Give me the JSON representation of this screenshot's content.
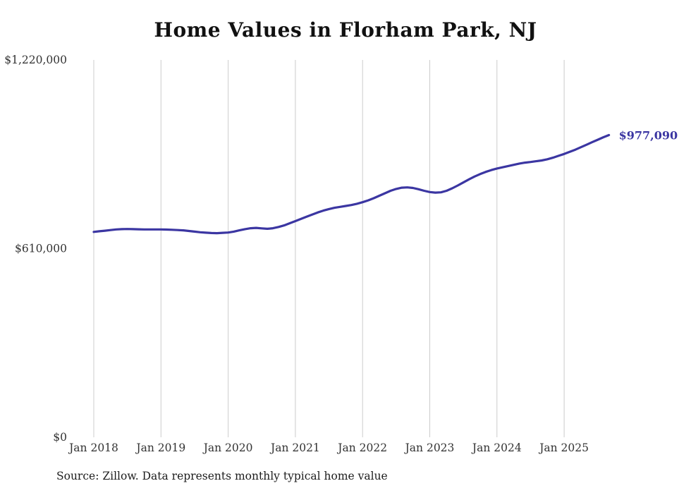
{
  "chart_data": {
    "type": "line",
    "title": "Home Values in Florham Park, NJ",
    "series_name": "Monthly typical home value",
    "start_month": "2018-01",
    "end_month": "2025-09",
    "values": [
      664000,
      666000,
      668000,
      670000,
      672000,
      673000,
      673500,
      673000,
      672500,
      672000,
      672000,
      672000,
      672000,
      671500,
      671000,
      670000,
      669000,
      667000,
      665000,
      663000,
      661500,
      660500,
      660000,
      661000,
      662000,
      665000,
      669000,
      673000,
      676000,
      677000,
      675500,
      674000,
      676000,
      680000,
      685000,
      692000,
      699000,
      706000,
      713000,
      720000,
      727000,
      733000,
      738000,
      742000,
      745000,
      748000,
      751000,
      755000,
      760000,
      766000,
      773000,
      781000,
      789000,
      797000,
      803000,
      807000,
      808000,
      806000,
      802000,
      797000,
      793000,
      791000,
      792000,
      797000,
      805000,
      814000,
      824000,
      834000,
      843000,
      851000,
      858000,
      864000,
      869000,
      873000,
      877000,
      881000,
      885000,
      888000,
      890000,
      892500,
      895000,
      899000,
      904000,
      910000,
      916000,
      923000,
      930000,
      938000,
      946000,
      954000,
      962000,
      970000,
      977090
    ],
    "ylim": [
      0,
      1220000
    ],
    "y_ticks": [
      {
        "label": "$0",
        "value": 0
      },
      {
        "label": "$610,000",
        "value": 610000
      },
      {
        "label": "$1,220,000",
        "value": 1220000
      }
    ],
    "x_ticks": [
      {
        "label": "Jan 2018",
        "month_index": 0
      },
      {
        "label": "Jan 2019",
        "month_index": 12
      },
      {
        "label": "Jan 2020",
        "month_index": 24
      },
      {
        "label": "Jan 2021",
        "month_index": 36
      },
      {
        "label": "Jan 2022",
        "month_index": 48
      },
      {
        "label": "Jan 2023",
        "month_index": 60
      },
      {
        "label": "Jan 2024",
        "month_index": 72
      },
      {
        "label": "Jan 2025",
        "month_index": 84
      }
    ],
    "grid": "vertical-only",
    "legend": "none",
    "line_color": "#3b36a2",
    "end_label": "$977,090",
    "end_value": 977090,
    "source_note": "Source: Zillow. Data represents monthly typical home value"
  }
}
